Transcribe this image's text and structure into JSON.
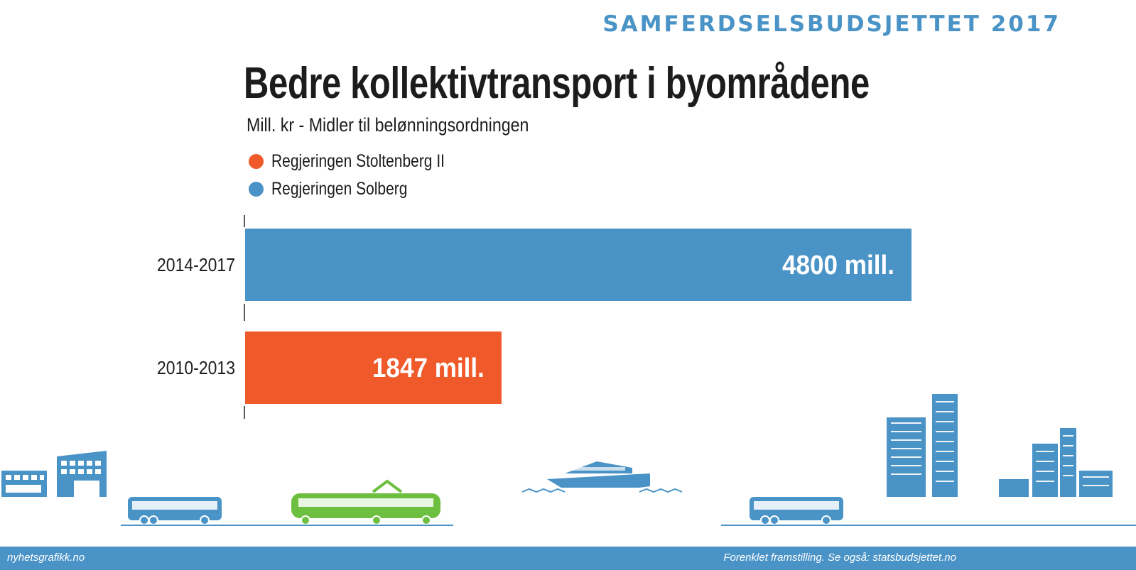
{
  "header": {
    "kicker": "SAMFERDSELSBUDSJETTET 2017"
  },
  "chart_data": {
    "type": "bar",
    "orientation": "horizontal",
    "title": "Bedre kollektivtransport i byområdene",
    "subtitle": "Mill. kr - Midler til belønningsordningen",
    "categories": [
      "2014-2017",
      "2010-2013"
    ],
    "values": [
      4800,
      1847
    ],
    "value_labels": [
      "4800 mill.",
      "1847 mill."
    ],
    "bar_series": [
      "Regjeringen Solberg",
      "Regjeringen Stoltenberg II"
    ],
    "series": [
      {
        "name": "Regjeringen Stoltenberg II",
        "color": "#f05a2a"
      },
      {
        "name": "Regjeringen Solberg",
        "color": "#4a93c6"
      }
    ],
    "xlim": [
      0,
      4800
    ],
    "grid": false,
    "legend_position": "top-left"
  },
  "illustration": {
    "icons": [
      "building-icon",
      "bus-icon",
      "tram-icon",
      "ferry-icon",
      "bus-icon",
      "tower-icon",
      "building-icon"
    ],
    "colors": {
      "blue": "#4a93c6",
      "green": "#6cbf3f"
    }
  },
  "footer": {
    "left": "nyhetsgrafikk.no",
    "right": "Forenklet framstilling. Se også: statsbudsjettet.no"
  }
}
